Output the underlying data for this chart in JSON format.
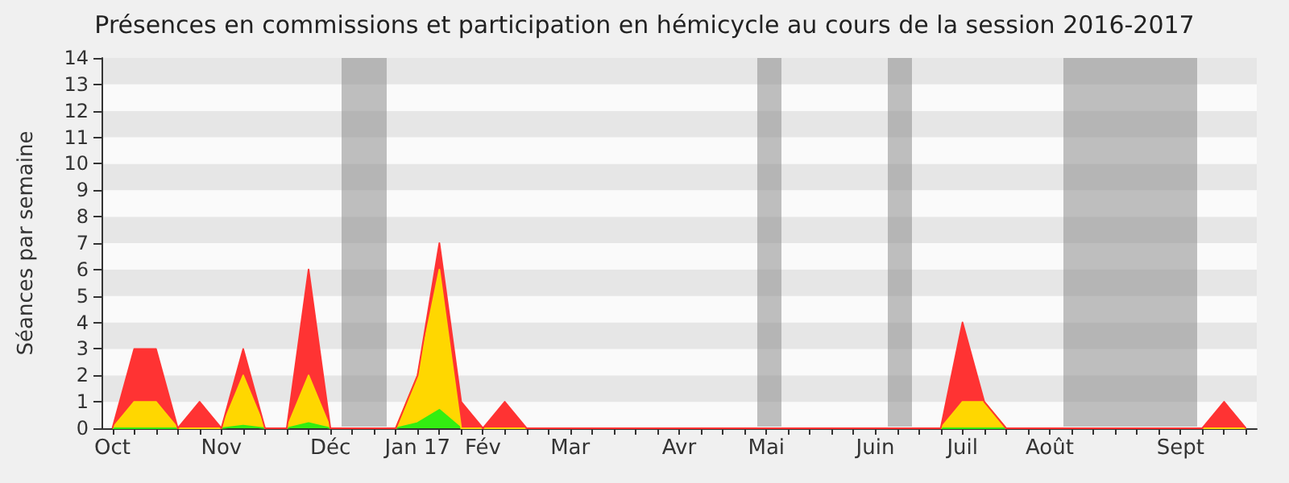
{
  "chart_data": {
    "type": "area",
    "title": "Présences en commissions et participation en hémicycle au cours de la session 2016-2017",
    "ylabel": "Séances par semaine",
    "stacked": true,
    "categories": [
      "Oct",
      null,
      null,
      null,
      null,
      "Nov",
      null,
      null,
      null,
      null,
      "Déc",
      null,
      null,
      null,
      "Jan 17",
      null,
      null,
      "Fév",
      null,
      null,
      null,
      "Mar",
      null,
      null,
      null,
      null,
      "Avr",
      null,
      null,
      null,
      "Mai",
      null,
      null,
      null,
      null,
      "Juin",
      null,
      null,
      null,
      "Juil",
      null,
      null,
      null,
      "Août",
      null,
      null,
      null,
      null,
      null,
      "Sept",
      null,
      null,
      null
    ],
    "series": [
      {
        "color": "#33ee11",
        "values": [
          0,
          0,
          0,
          0,
          0,
          0,
          0.1,
          0,
          0,
          0.2,
          0,
          0,
          0,
          0,
          0.2,
          0.7,
          0,
          0,
          0,
          0,
          0,
          0,
          0,
          0,
          0,
          0,
          0,
          0,
          0,
          0,
          0,
          0,
          0,
          0,
          0,
          0,
          0,
          0,
          0,
          0,
          0,
          0,
          0,
          0,
          0,
          0,
          0,
          0,
          0,
          0,
          0,
          0,
          0
        ]
      },
      {
        "color": "#ffd700",
        "values": [
          0,
          1,
          1,
          0,
          0,
          0,
          1.9,
          0,
          0,
          1.8,
          0,
          0,
          0,
          0,
          1.8,
          5.3,
          0,
          0,
          0,
          0,
          0,
          0,
          0,
          0,
          0,
          0,
          0,
          0,
          0,
          0,
          0,
          0,
          0,
          0,
          0,
          0,
          0,
          0,
          0,
          1,
          1,
          0,
          0,
          0,
          0,
          0,
          0,
          0,
          0,
          0,
          0,
          0,
          0
        ]
      },
      {
        "color": "#ff3333",
        "values": [
          0,
          2,
          2,
          0,
          1,
          0,
          1,
          0,
          0,
          4,
          0,
          0,
          0,
          0,
          0,
          1,
          1,
          0,
          1,
          0,
          0,
          0,
          0,
          0,
          0,
          0,
          0,
          0,
          0,
          0,
          0,
          0,
          0,
          0,
          0,
          0,
          0,
          0,
          0,
          3,
          0,
          0,
          0,
          0,
          0,
          0,
          0,
          0,
          0,
          0,
          0,
          1,
          0
        ]
      }
    ],
    "ylim": [
      0,
      14
    ],
    "yticks": [
      0,
      1,
      2,
      3,
      4,
      5,
      6,
      7,
      8,
      9,
      10,
      11,
      12,
      13,
      14
    ]
  }
}
